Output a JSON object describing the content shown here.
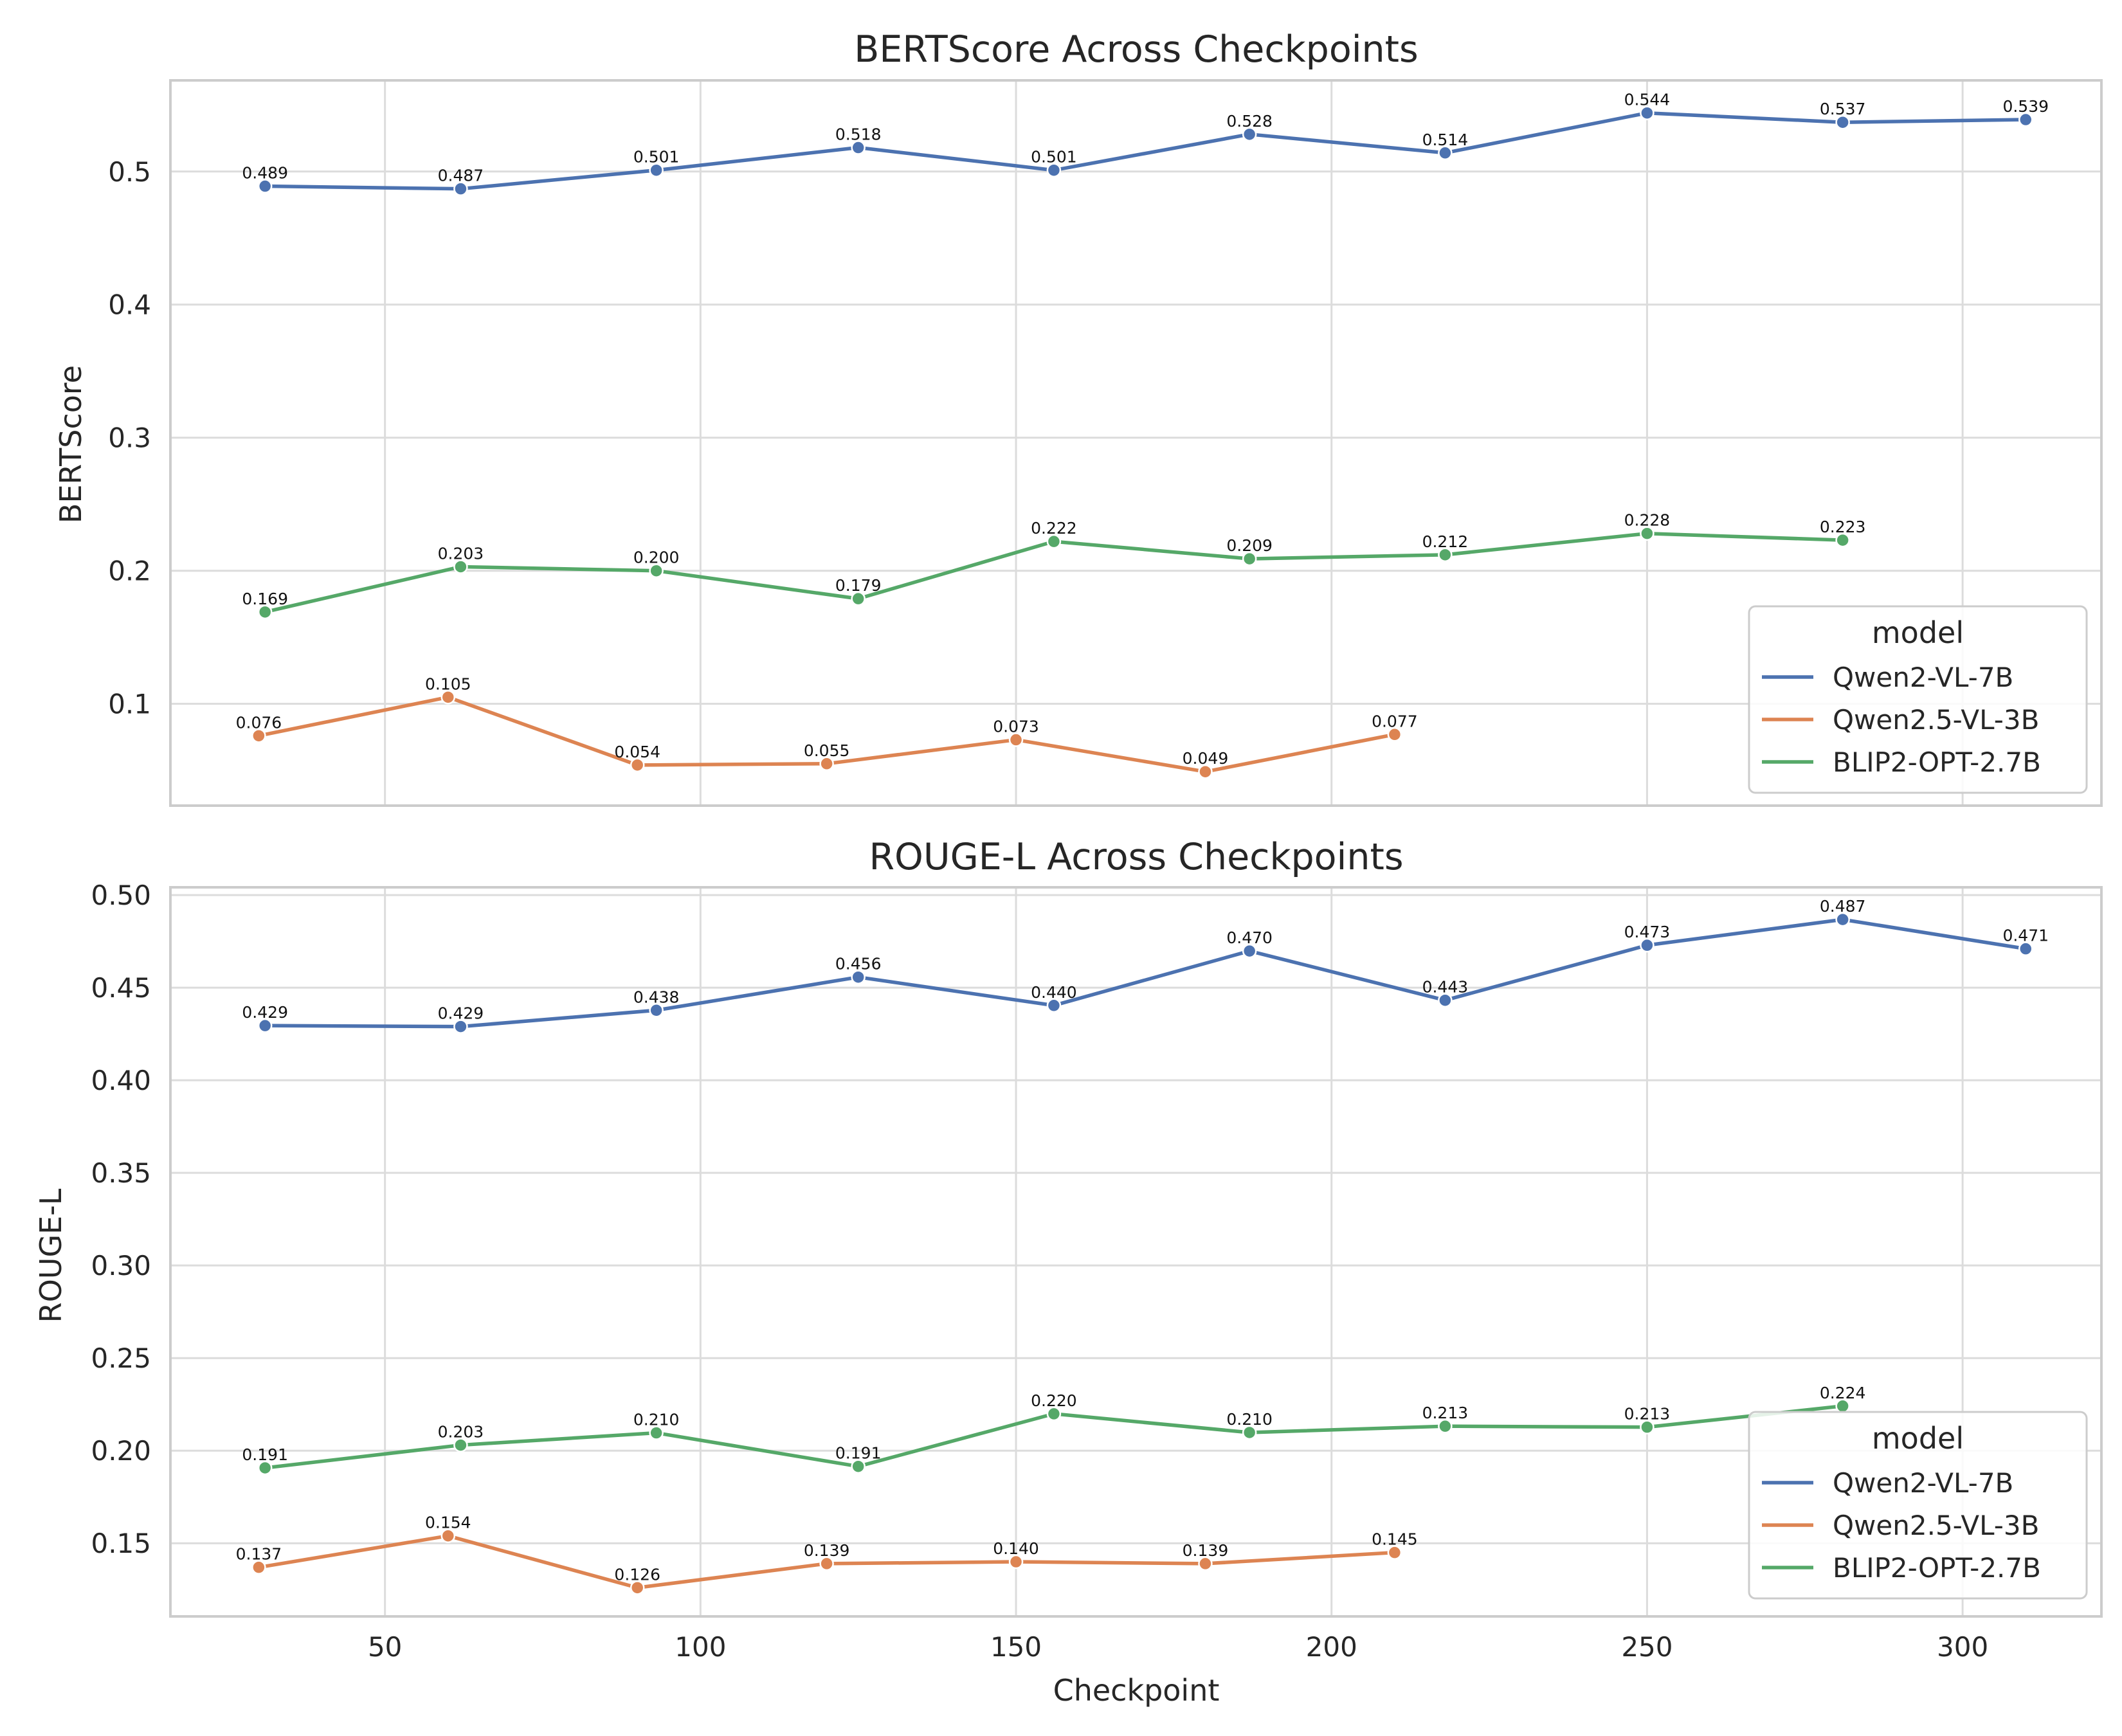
{
  "colors": {
    "Qwen2-VL-7B": "#4c72b0",
    "Qwen2.5-VL-3B": "#dd8452",
    "BLIP2-OPT-2.7B": "#55a868",
    "grid": "#dcdcdc",
    "frame": "#cccccc"
  },
  "chart_data": [
    {
      "type": "line",
      "title": "BERTScore Across Checkpoints",
      "xlabel": "",
      "ylabel": "BERTScore",
      "xlim": [
        16,
        322
      ],
      "ylim": [
        0.0235,
        0.5685
      ],
      "xticks": [
        50,
        100,
        150,
        200,
        250,
        300
      ],
      "yticks": [
        0.1,
        0.2,
        0.3,
        0.4,
        0.5
      ],
      "ytick_labels": [
        "0.1",
        "0.2",
        "0.3",
        "0.4",
        "0.5"
      ],
      "grid": true,
      "legend": {
        "title": "model",
        "position": "lower-right",
        "entries": [
          "Qwen2-VL-7B",
          "Qwen2.5-VL-3B",
          "BLIP2-OPT-2.7B"
        ]
      },
      "series": [
        {
          "name": "Qwen2-VL-7B",
          "x": [
            31,
            62,
            93,
            125,
            156,
            187,
            218,
            250,
            281,
            310
          ],
          "y": [
            0.489,
            0.487,
            0.501,
            0.518,
            0.501,
            0.528,
            0.514,
            0.544,
            0.537,
            0.539
          ],
          "labels": [
            "0.489",
            "0.487",
            "0.501",
            "0.518",
            "0.501",
            "0.528",
            "0.514",
            "0.544",
            "0.537",
            "0.539"
          ]
        },
        {
          "name": "Qwen2.5-VL-3B",
          "x": [
            30,
            60,
            90,
            120,
            150,
            180,
            210
          ],
          "y": [
            0.076,
            0.105,
            0.054,
            0.055,
            0.073,
            0.049,
            0.077
          ],
          "labels": [
            "0.076",
            "0.105",
            "0.054",
            "0.055",
            "0.073",
            "0.049",
            "0.077"
          ]
        },
        {
          "name": "BLIP2-OPT-2.7B",
          "x": [
            31,
            62,
            93,
            125,
            156,
            187,
            218,
            250,
            281
          ],
          "y": [
            0.169,
            0.203,
            0.2,
            0.179,
            0.222,
            0.209,
            0.212,
            0.228,
            0.223
          ],
          "labels": [
            "0.169",
            "0.203",
            "0.200",
            "0.179",
            "0.222",
            "0.209",
            "0.212",
            "0.228",
            "0.223"
          ]
        }
      ]
    },
    {
      "type": "line",
      "title": "ROUGE-L Across Checkpoints",
      "xlabel": "Checkpoint",
      "ylabel": "ROUGE-L",
      "xlim": [
        16,
        322
      ],
      "ylim": [
        0.1105,
        0.5042
      ],
      "xticks": [
        50,
        100,
        150,
        200,
        250,
        300
      ],
      "yticks": [
        0.15,
        0.2,
        0.25,
        0.3,
        0.35,
        0.4,
        0.45,
        0.5
      ],
      "ytick_labels": [
        "0.15",
        "0.20",
        "0.25",
        "0.30",
        "0.35",
        "0.40",
        "0.45",
        "0.50"
      ],
      "grid": true,
      "legend": {
        "title": "model",
        "position": "lower-right",
        "entries": [
          "Qwen2-VL-7B",
          "Qwen2.5-VL-3B",
          "BLIP2-OPT-2.7B"
        ]
      },
      "series": [
        {
          "name": "Qwen2-VL-7B",
          "x": [
            31,
            62,
            93,
            125,
            156,
            187,
            218,
            250,
            281,
            310
          ],
          "y": [
            0.4295,
            0.429,
            0.4378,
            0.4557,
            0.4404,
            0.4698,
            0.4432,
            0.4729,
            0.4868,
            0.471
          ],
          "labels": [
            "0.429",
            "0.429",
            "0.438",
            "0.456",
            "0.440",
            "0.470",
            "0.443",
            "0.473",
            "0.487",
            "0.471"
          ]
        },
        {
          "name": "Qwen2.5-VL-3B",
          "x": [
            30,
            60,
            90,
            120,
            150,
            180,
            210
          ],
          "y": [
            0.137,
            0.154,
            0.126,
            0.139,
            0.14,
            0.139,
            0.145
          ],
          "labels": [
            "0.137",
            "0.154",
            "0.126",
            "0.139",
            "0.140",
            "0.139",
            "0.145"
          ]
        },
        {
          "name": "BLIP2-OPT-2.7B",
          "x": [
            31,
            62,
            93,
            125,
            156,
            187,
            218,
            250,
            281
          ],
          "y": [
            0.1907,
            0.203,
            0.2096,
            0.1915,
            0.2199,
            0.2098,
            0.2132,
            0.2127,
            0.2241
          ],
          "labels": [
            "0.191",
            "0.203",
            "0.210",
            "0.191",
            "0.220",
            "0.210",
            "0.213",
            "0.213",
            "0.224"
          ]
        }
      ]
    }
  ]
}
